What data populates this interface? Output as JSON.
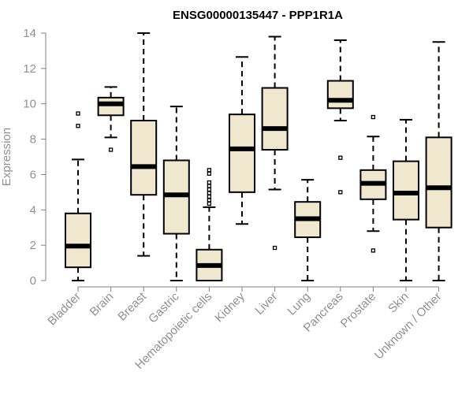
{
  "chart_data": {
    "type": "box",
    "title": "ENSG00000135447 - PPP1R1A",
    "xlabel": "",
    "ylabel": "Expression",
    "ylim": [
      0,
      14
    ],
    "yticks": [
      0,
      2,
      4,
      6,
      8,
      10,
      12,
      14
    ],
    "grid": false,
    "legend": "none",
    "box_fill": "#efe8cf",
    "box_stroke": "#000000",
    "axis_color": "#808080",
    "categories": [
      "Bladder",
      "Brain",
      "Breast",
      "Gastric",
      "Hematopoietic cells",
      "Kidney",
      "Liver",
      "Lung",
      "Pancreas",
      "Prostate",
      "Skin",
      "Unknown / Other"
    ],
    "boxes": [
      {
        "min": 0.0,
        "q1": 0.75,
        "median": 1.95,
        "q3": 3.8,
        "max": 6.85,
        "outliers": [
          8.75,
          9.45
        ]
      },
      {
        "min": 8.1,
        "q1": 9.35,
        "median": 10.0,
        "q3": 10.35,
        "max": 10.95,
        "outliers": [
          7.4
        ]
      },
      {
        "min": 1.4,
        "q1": 4.85,
        "median": 6.45,
        "q3": 9.05,
        "max": 14.0,
        "outliers": []
      },
      {
        "min": 0.0,
        "q1": 2.65,
        "median": 4.85,
        "q3": 6.8,
        "max": 9.85,
        "outliers": []
      },
      {
        "min": 0.0,
        "q1": 0.0,
        "median": 0.85,
        "q3": 1.75,
        "max": 4.15,
        "outliers": [
          4.35,
          4.55,
          4.75,
          4.95,
          5.15,
          5.35,
          5.55,
          6.05,
          6.25
        ]
      },
      {
        "min": 3.2,
        "q1": 5.0,
        "median": 7.45,
        "q3": 9.4,
        "max": 12.65,
        "outliers": []
      },
      {
        "min": 5.15,
        "q1": 7.4,
        "median": 8.6,
        "q3": 10.9,
        "max": 13.8,
        "outliers": [
          1.85
        ]
      },
      {
        "min": 0.0,
        "q1": 2.45,
        "median": 3.5,
        "q3": 4.45,
        "max": 5.7,
        "outliers": []
      },
      {
        "min": 9.05,
        "q1": 9.75,
        "median": 10.2,
        "q3": 11.3,
        "max": 13.6,
        "outliers": [
          5.0,
          6.95
        ]
      },
      {
        "min": 2.8,
        "q1": 4.6,
        "median": 5.5,
        "q3": 6.25,
        "max": 8.15,
        "outliers": [
          1.7,
          9.25
        ]
      },
      {
        "min": 0.0,
        "q1": 3.45,
        "median": 4.95,
        "q3": 6.75,
        "max": 9.1,
        "outliers": []
      },
      {
        "min": 0.0,
        "q1": 3.0,
        "median": 5.25,
        "q3": 8.1,
        "max": 13.5,
        "outliers": []
      }
    ]
  }
}
